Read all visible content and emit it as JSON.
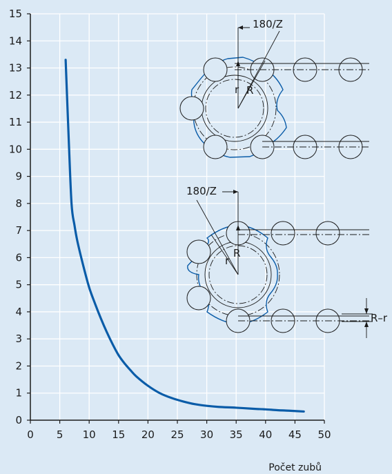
{
  "chart_data": {
    "type": "line",
    "xlabel": "Počet zubů",
    "ylabel": "",
    "xlim": [
      0,
      50
    ],
    "ylim": [
      0,
      15
    ],
    "x_ticks": [
      0,
      5,
      10,
      15,
      20,
      25,
      30,
      35,
      40,
      45,
      50
    ],
    "y_ticks": [
      0,
      1,
      2,
      3,
      4,
      5,
      6,
      7,
      8,
      9,
      10,
      11,
      12,
      13,
      14,
      15
    ],
    "grid": true,
    "line_color": "#0a5ca8",
    "series": [
      {
        "x": [
          6,
          6.5,
          7,
          7.5,
          8,
          9,
          10,
          11,
          12,
          13,
          14,
          15,
          16,
          17,
          18,
          20,
          22,
          24,
          26,
          28,
          30,
          32,
          35,
          38,
          40,
          42,
          44,
          46.5
        ],
        "values": [
          13.3,
          10.5,
          8.0,
          7.2,
          6.6,
          5.7,
          4.9,
          4.3,
          3.75,
          3.25,
          2.8,
          2.4,
          2.1,
          1.85,
          1.62,
          1.27,
          1.0,
          0.82,
          0.69,
          0.59,
          0.53,
          0.49,
          0.46,
          0.42,
          0.4,
          0.37,
          0.35,
          0.32
        ]
      }
    ],
    "annotations": {
      "angle_top": "180/Z",
      "angle_bottom": "180/Z",
      "r_top": "r",
      "R_top": "R",
      "r_bottom": "r",
      "R_bottom": "R",
      "dim_label": "R–r"
    }
  }
}
